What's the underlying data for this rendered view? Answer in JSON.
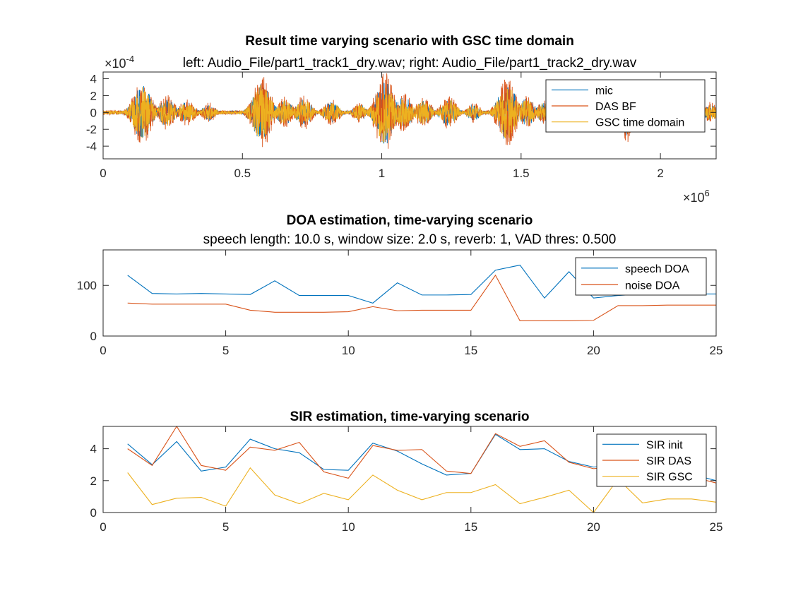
{
  "colors": {
    "blue": "#0072BD",
    "orange": "#D95319",
    "yellow": "#EDB120"
  },
  "chart_data": [
    {
      "type": "line",
      "title": "Result time varying scenario with GSC time domain",
      "subtitle": "left: Audio_File/part1_track1_dry.wav; right: Audio_File/part1_track2_dry.wav",
      "y_multiplier": "×10",
      "y_exponent": "-4",
      "x_multiplier": "×10",
      "x_exponent": "6",
      "xlim": [
        0,
        2.2
      ],
      "ylim": [
        -5.5,
        4.8
      ],
      "x_ticks": [
        0,
        0.5,
        1,
        1.5,
        2
      ],
      "x_tick_labels": [
        "0",
        "0.5",
        "1",
        "1.5",
        "2"
      ],
      "y_ticks": [
        4,
        2,
        0,
        -2,
        -4
      ],
      "y_tick_labels": [
        "4",
        "2",
        "0",
        "-2",
        "-4"
      ],
      "legend": "top-right",
      "bursts": [
        {
          "x": 0.14,
          "amp": 3.8,
          "width": 0.06
        },
        {
          "x": 0.23,
          "amp": 2.0,
          "width": 0.05
        },
        {
          "x": 0.3,
          "amp": 1.5,
          "width": 0.05
        },
        {
          "x": 0.38,
          "amp": 1.2,
          "width": 0.04
        },
        {
          "x": 0.57,
          "amp": 4.2,
          "width": 0.06
        },
        {
          "x": 0.65,
          "amp": 1.8,
          "width": 0.05
        },
        {
          "x": 0.72,
          "amp": 2.0,
          "width": 0.05
        },
        {
          "x": 0.82,
          "amp": 1.5,
          "width": 0.05
        },
        {
          "x": 0.92,
          "amp": 1.2,
          "width": 0.04
        },
        {
          "x": 1.01,
          "amp": 4.6,
          "width": 0.06
        },
        {
          "x": 1.08,
          "amp": 2.3,
          "width": 0.05
        },
        {
          "x": 1.15,
          "amp": 1.8,
          "width": 0.05
        },
        {
          "x": 1.24,
          "amp": 2.0,
          "width": 0.05
        },
        {
          "x": 1.33,
          "amp": 1.2,
          "width": 0.04
        },
        {
          "x": 1.45,
          "amp": 4.0,
          "width": 0.06
        },
        {
          "x": 1.52,
          "amp": 2.0,
          "width": 0.05
        },
        {
          "x": 1.58,
          "amp": 1.5,
          "width": 0.04
        },
        {
          "x": 1.88,
          "amp": 3.5,
          "width": 0.03
        },
        {
          "x": 2.08,
          "amp": 1.2,
          "width": 0.04
        },
        {
          "x": 2.18,
          "amp": 1.2,
          "width": 0.04
        }
      ],
      "series": [
        {
          "name": "mic",
          "color": "#0072BD"
        },
        {
          "name": "DAS BF",
          "color": "#D95319"
        },
        {
          "name": "GSC time domain",
          "color": "#EDB120"
        }
      ]
    },
    {
      "type": "line",
      "title": "DOA estimation, time-varying scenario",
      "subtitle": "speech length: 10.0 s, window size: 2.0 s, reverb: 1, VAD thres: 0.500",
      "xlim": [
        0,
        25
      ],
      "ylim": [
        0,
        170
      ],
      "x_ticks": [
        0,
        5,
        10,
        15,
        20,
        25
      ],
      "x_tick_labels": [
        "0",
        "5",
        "10",
        "15",
        "20",
        "25"
      ],
      "y_ticks": [
        0,
        100
      ],
      "y_tick_labels": [
        "0",
        "100"
      ],
      "legend": "top-right",
      "x": [
        1,
        2,
        3,
        4,
        5,
        6,
        7,
        8,
        9,
        10,
        11,
        12,
        13,
        14,
        15,
        16,
        17,
        18,
        19,
        20,
        21,
        22,
        23,
        24,
        25
      ],
      "series": [
        {
          "name": "speech DOA",
          "color": "#0072BD",
          "values": [
            120,
            84,
            83,
            84,
            83,
            82,
            109,
            80,
            80,
            80,
            65,
            105,
            81,
            81,
            82,
            130,
            140,
            75,
            127,
            75,
            80,
            83,
            83,
            83,
            83
          ]
        },
        {
          "name": "noise DOA",
          "color": "#D95319",
          "values": [
            65,
            63,
            63,
            63,
            63,
            51,
            47,
            47,
            47,
            48,
            58,
            50,
            51,
            51,
            51,
            120,
            30,
            30,
            30,
            31,
            60,
            60,
            61,
            61,
            61
          ]
        }
      ]
    },
    {
      "type": "line",
      "title": "SIR estimation, time-varying scenario",
      "xlim": [
        0,
        25
      ],
      "ylim": [
        0,
        5.4
      ],
      "x_ticks": [
        0,
        5,
        10,
        15,
        20,
        25
      ],
      "x_tick_labels": [
        "0",
        "5",
        "10",
        "15",
        "20",
        "25"
      ],
      "y_ticks": [
        0,
        2,
        4
      ],
      "y_tick_labels": [
        "0",
        "2",
        "4"
      ],
      "legend": "top-right",
      "x": [
        1,
        2,
        3,
        4,
        5,
        6,
        7,
        8,
        9,
        10,
        11,
        12,
        13,
        14,
        15,
        16,
        17,
        18,
        19,
        20,
        21,
        22,
        23,
        24,
        25
      ],
      "series": [
        {
          "name": "SIR init",
          "color": "#0072BD",
          "values": [
            4.3,
            3.0,
            4.45,
            2.6,
            2.85,
            4.6,
            4.0,
            3.75,
            2.7,
            2.65,
            4.35,
            3.85,
            3.05,
            2.35,
            2.45,
            4.9,
            3.95,
            4.0,
            3.2,
            2.85,
            3.0,
            2.7,
            2.6,
            2.4,
            2.0
          ]
        },
        {
          "name": "SIR DAS",
          "color": "#D95319",
          "values": [
            4.0,
            2.95,
            5.4,
            2.95,
            2.65,
            4.1,
            3.9,
            4.4,
            2.55,
            2.15,
            4.2,
            3.9,
            3.95,
            2.6,
            2.45,
            4.95,
            4.15,
            4.5,
            3.15,
            2.75,
            2.9,
            2.65,
            2.55,
            2.25,
            1.85
          ]
        },
        {
          "name": "SIR GSC",
          "color": "#EDB120",
          "values": [
            2.5,
            0.5,
            0.9,
            0.95,
            0.4,
            2.8,
            1.1,
            0.55,
            1.2,
            0.8,
            2.35,
            1.4,
            0.8,
            1.25,
            1.25,
            1.75,
            0.55,
            0.95,
            1.4,
            0.0,
            2.1,
            0.6,
            0.85,
            0.85,
            0.65
          ]
        }
      ]
    }
  ]
}
